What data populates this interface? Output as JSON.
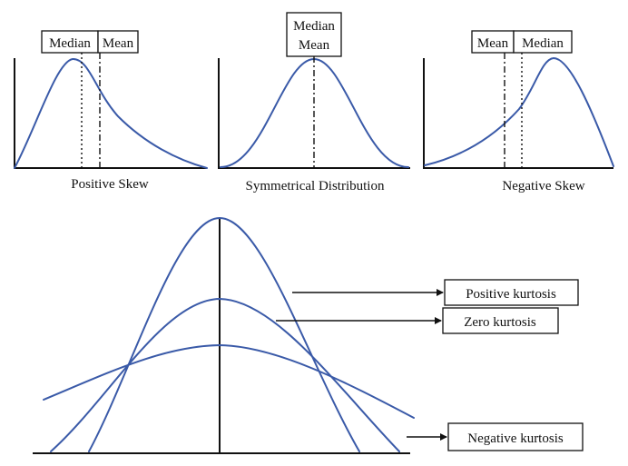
{
  "colors": {
    "curve": "#3a5aa8",
    "line": "#111111",
    "background": "#ffffff"
  },
  "panels": {
    "positive_skew": {
      "caption": "Positive Skew",
      "median_label": "Median",
      "mean_label": "Mean"
    },
    "symmetrical": {
      "caption": "Symmetrical Distribution",
      "median_label": "Median",
      "mean_label": "Mean"
    },
    "negative_skew": {
      "caption": "Negative Skew",
      "mean_label": "Mean",
      "median_label": "Median"
    }
  },
  "kurtosis": {
    "positive_label": "Positive kurtosis",
    "zero_label": "Zero kurtosis",
    "negative_label": "Negative kurtosis"
  }
}
